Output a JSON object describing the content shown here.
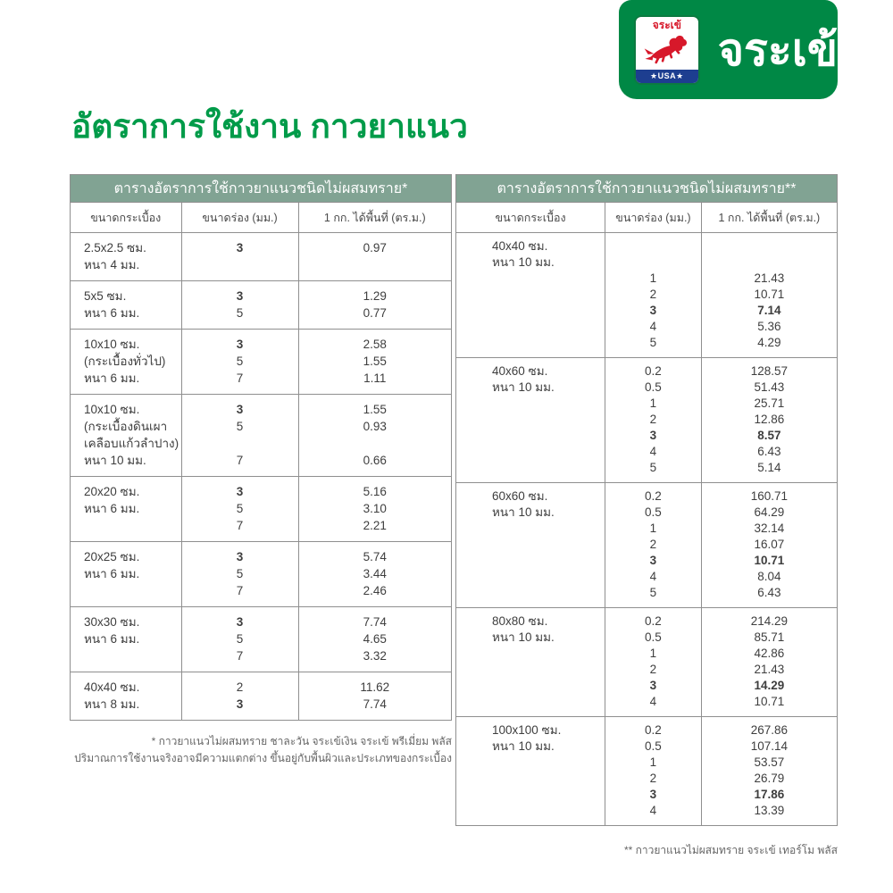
{
  "brand": {
    "name_text": "จระเข้",
    "badge": {
      "top_text": "จระเข้",
      "usa_text": "★USA★"
    }
  },
  "page_title": "อัตราการใช้งาน กาวยาแนว",
  "colors": {
    "brand_green": "#008845",
    "title_green": "#009B49",
    "table_header_green": "#81A393",
    "badge_red": "#D7182A",
    "badge_blue": "#1D3E90",
    "border_gray": "#8F8F8F"
  },
  "tables": [
    {
      "title": "ตารางอัตราการใช้กาวยาแนวชนิดไม่ผสมทราย*",
      "columns": [
        "ขนาดกระเบื้อง",
        "ขนาดร่อง (มม.)",
        "1 กก. ได้พื้นที่ (ตร.ม.)"
      ],
      "bold_groove_value": "3",
      "bold_coverage_for_groove": false,
      "rows": [
        {
          "size": [
            "2.5x2.5 ซม.",
            "หนา 4 มม."
          ],
          "grooves": [
            "3"
          ],
          "coverage": [
            "0.97"
          ]
        },
        {
          "size": [
            "5x5 ซม.",
            "หนา 6 มม."
          ],
          "grooves": [
            "3",
            "5"
          ],
          "coverage": [
            "1.29",
            "0.77"
          ]
        },
        {
          "size": [
            "10x10 ซม.",
            "(กระเบื้องทั่วไป)",
            "หนา 6 มม."
          ],
          "grooves": [
            "3",
            "5",
            "7"
          ],
          "coverage": [
            "2.58",
            "1.55",
            "1.11"
          ]
        },
        {
          "size": [
            "10x10 ซม.",
            "(กระเบื้องดินเผา",
            "เคลือบแก้วลำปาง)",
            "หนา 10 มม."
          ],
          "grooves": [
            "3",
            "5",
            "",
            "7"
          ],
          "coverage": [
            "1.55",
            "0.93",
            "",
            "0.66"
          ]
        },
        {
          "size": [
            "20x20 ซม.",
            "หนา 6 มม."
          ],
          "grooves": [
            "3",
            "5",
            "7"
          ],
          "coverage": [
            "5.16",
            "3.10",
            "2.21"
          ]
        },
        {
          "size": [
            "20x25 ซม.",
            "หนา 6 มม."
          ],
          "grooves": [
            "3",
            "5",
            "7"
          ],
          "coverage": [
            "5.74",
            "3.44",
            "2.46"
          ]
        },
        {
          "size": [
            "30x30 ซม.",
            "หนา 6 มม."
          ],
          "grooves": [
            "3",
            "5",
            "7"
          ],
          "coverage": [
            "7.74",
            "4.65",
            "3.32"
          ]
        },
        {
          "size": [
            "40x40 ซม.",
            "หนา 8 มม."
          ],
          "grooves": [
            "2",
            "3"
          ],
          "coverage": [
            "11.62",
            "7.74"
          ]
        }
      ],
      "footnotes": [
        "* กาวยาแนวไม่ผสมทราย ชาละวัน จระเข้เงิน จระเข้ พรีเมี่ยม พลัส",
        "ปริมาณการใช้งานจริงอาจมีความแตกต่าง ขึ้นอยู่กับพื้นผิวและประเภทของกระเบื้อง"
      ]
    },
    {
      "title": "ตารางอัตราการใช้กาวยาแนวชนิดไม่ผสมทราย**",
      "columns": [
        "ขนาดกระเบื้อง",
        "ขนาดร่อง (มม.)",
        "1 กก. ได้พื้นที่ (ตร.ม.)"
      ],
      "bold_groove_value": "3",
      "bold_coverage_for_groove": true,
      "rows": [
        {
          "size": [
            "40x40 ซม.",
            "หนา 10 มม."
          ],
          "grooves": [
            "",
            "",
            "1",
            "2",
            "3",
            "4",
            "5"
          ],
          "coverage": [
            "",
            "",
            "21.43",
            "10.71",
            "7.14",
            "5.36",
            "4.29"
          ]
        },
        {
          "size": [
            "40x60 ซม.",
            "หนา 10 มม."
          ],
          "grooves": [
            "0.2",
            "0.5",
            "1",
            "2",
            "3",
            "4",
            "5"
          ],
          "coverage": [
            "128.57",
            "51.43",
            "25.71",
            "12.86",
            "8.57",
            "6.43",
            "5.14"
          ]
        },
        {
          "size": [
            "60x60 ซม.",
            "หนา 10 มม."
          ],
          "grooves": [
            "0.2",
            "0.5",
            "1",
            "2",
            "3",
            "4",
            "5"
          ],
          "coverage": [
            "160.71",
            "64.29",
            "32.14",
            "16.07",
            "10.71",
            "8.04",
            "6.43"
          ]
        },
        {
          "size": [
            "80x80 ซม.",
            "หนา 10 มม."
          ],
          "grooves": [
            "0.2",
            "0.5",
            "1",
            "2",
            "3",
            "4"
          ],
          "coverage": [
            "214.29",
            "85.71",
            "42.86",
            "21.43",
            "14.29",
            "10.71"
          ]
        },
        {
          "size": [
            "100x100 ซม.",
            "หนา 10 มม."
          ],
          "grooves": [
            "0.2",
            "0.5",
            "1",
            "2",
            "3",
            "4"
          ],
          "coverage": [
            "267.86",
            "107.14",
            "53.57",
            "26.79",
            "17.86",
            "13.39"
          ]
        }
      ],
      "footnotes": [
        "** กาวยาแนวไม่ผสมทราย จระเข้ เทอร์โม พลัส"
      ]
    }
  ]
}
